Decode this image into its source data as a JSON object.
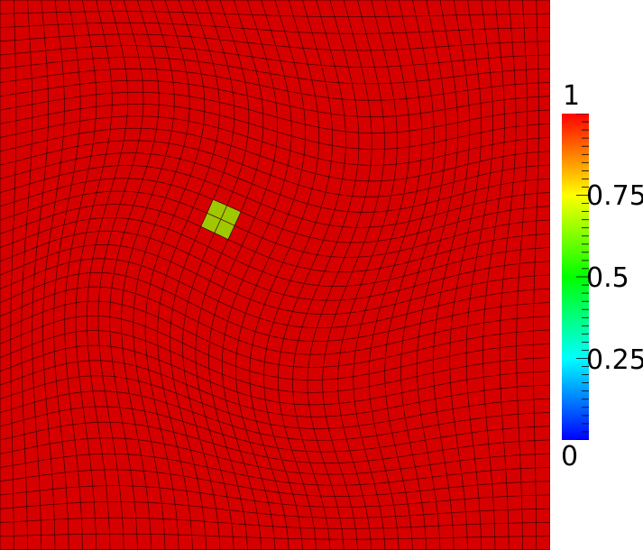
{
  "scene": {
    "colors": {
      "mesh_fill": "#d60000",
      "mesh_lines": "#3a0000",
      "highlight_cell": "#9fc800"
    },
    "grid_cells": 40,
    "highlight": {
      "cell_i": 15,
      "cell_j": 15,
      "size_cells": 2,
      "value": 0.8
    }
  },
  "legend": {
    "max_label": "1",
    "min_label": "0",
    "labels": [
      {
        "value": 0.75,
        "text": "0.75"
      },
      {
        "value": 0.5,
        "text": "0.5"
      },
      {
        "value": 0.25,
        "text": "0.25"
      }
    ],
    "range": [
      0,
      1
    ],
    "colormap": [
      "#0000ff",
      "#00ffff",
      "#00ff00",
      "#ffff00",
      "#ff0000"
    ]
  }
}
